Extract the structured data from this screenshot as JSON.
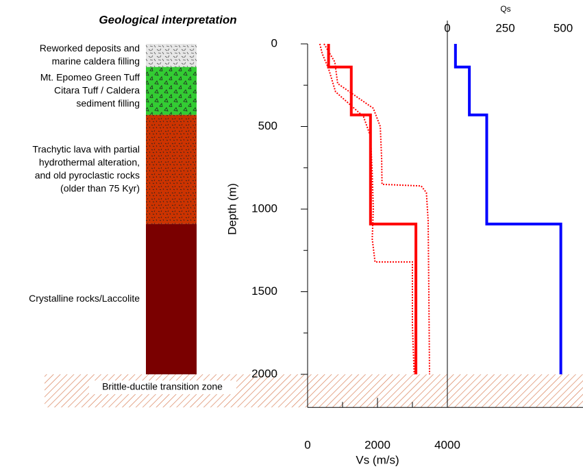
{
  "title": "Geological interpretation",
  "chart_data": {
    "type": "profile",
    "ylabel": "Depth (m)",
    "xlabel": "Vs (m/s)",
    "x2label": "Qs",
    "ylim": [
      0,
      2200
    ],
    "yticks": [
      0,
      500,
      1000,
      1500,
      2000
    ],
    "yminor": [
      250,
      750,
      1250,
      1750
    ],
    "xlim": [
      0,
      4000
    ],
    "xticks": [
      0,
      2000,
      4000
    ],
    "xminor": [
      1000,
      3000
    ],
    "x2lim": [
      0,
      500
    ],
    "x2ticks": [
      0,
      250,
      500
    ],
    "layers": [
      {
        "label": [
          "Reworked deposits and",
          "marine caldera filling"
        ],
        "top": 0,
        "bottom": 140,
        "color": "#e6e6e6"
      },
      {
        "label": [
          "Mt. Epomeo Green Tuff",
          "Citara Tuff / Caldera",
          "sediment filling"
        ],
        "top": 140,
        "bottom": 430,
        "color": "#33cc33"
      },
      {
        "label": [
          "Trachytic lava with partial",
          "hydrothermal alteration,",
          "and old pyroclastic rocks",
          "(older than 75 Kyr)"
        ],
        "top": 430,
        "bottom": 1090,
        "color": "#cc3300"
      },
      {
        "label": [
          "Crystalline rocks/Laccolite"
        ],
        "top": 1090,
        "bottom": 2000,
        "color": "#7a0000"
      }
    ],
    "zone": {
      "label": "Brittle-ductile transition zone",
      "top": 2000,
      "bottom": 2200,
      "color": "#d9825b"
    },
    "series": [
      {
        "axis": "x",
        "color": "#ff0000",
        "style": "solid",
        "values": [
          600,
          600,
          1250,
          1250,
          1800,
          1800,
          3100,
          3100
        ],
        "depth": [
          0,
          140,
          140,
          430,
          430,
          1090,
          1090,
          2000
        ]
      },
      {
        "axis": "x",
        "color": "#ff0000",
        "style": "dotted",
        "values": [
          350,
          420,
          600,
          800,
          1600,
          1800,
          1850,
          1880,
          1850,
          1930,
          3000,
          3000,
          3050
        ],
        "depth": [
          0,
          60,
          150,
          290,
          440,
          560,
          780,
          1000,
          1180,
          1320,
          1320,
          1700,
          2000
        ]
      },
      {
        "axis": "x",
        "color": "#ff0000",
        "style": "dotted",
        "values": [
          470,
          780,
          860,
          1880,
          2080,
          2120,
          2130,
          3250,
          3400,
          3450,
          3470,
          3490
        ],
        "depth": [
          0,
          110,
          240,
          390,
          500,
          700,
          850,
          860,
          900,
          1070,
          1500,
          2000
        ]
      },
      {
        "axis": "x2",
        "color": "#0000ff",
        "style": "solid",
        "values": [
          35,
          35,
          95,
          95,
          170,
          170,
          490,
          490
        ],
        "depth": [
          0,
          140,
          140,
          430,
          430,
          1090,
          1090,
          2000
        ]
      }
    ]
  }
}
